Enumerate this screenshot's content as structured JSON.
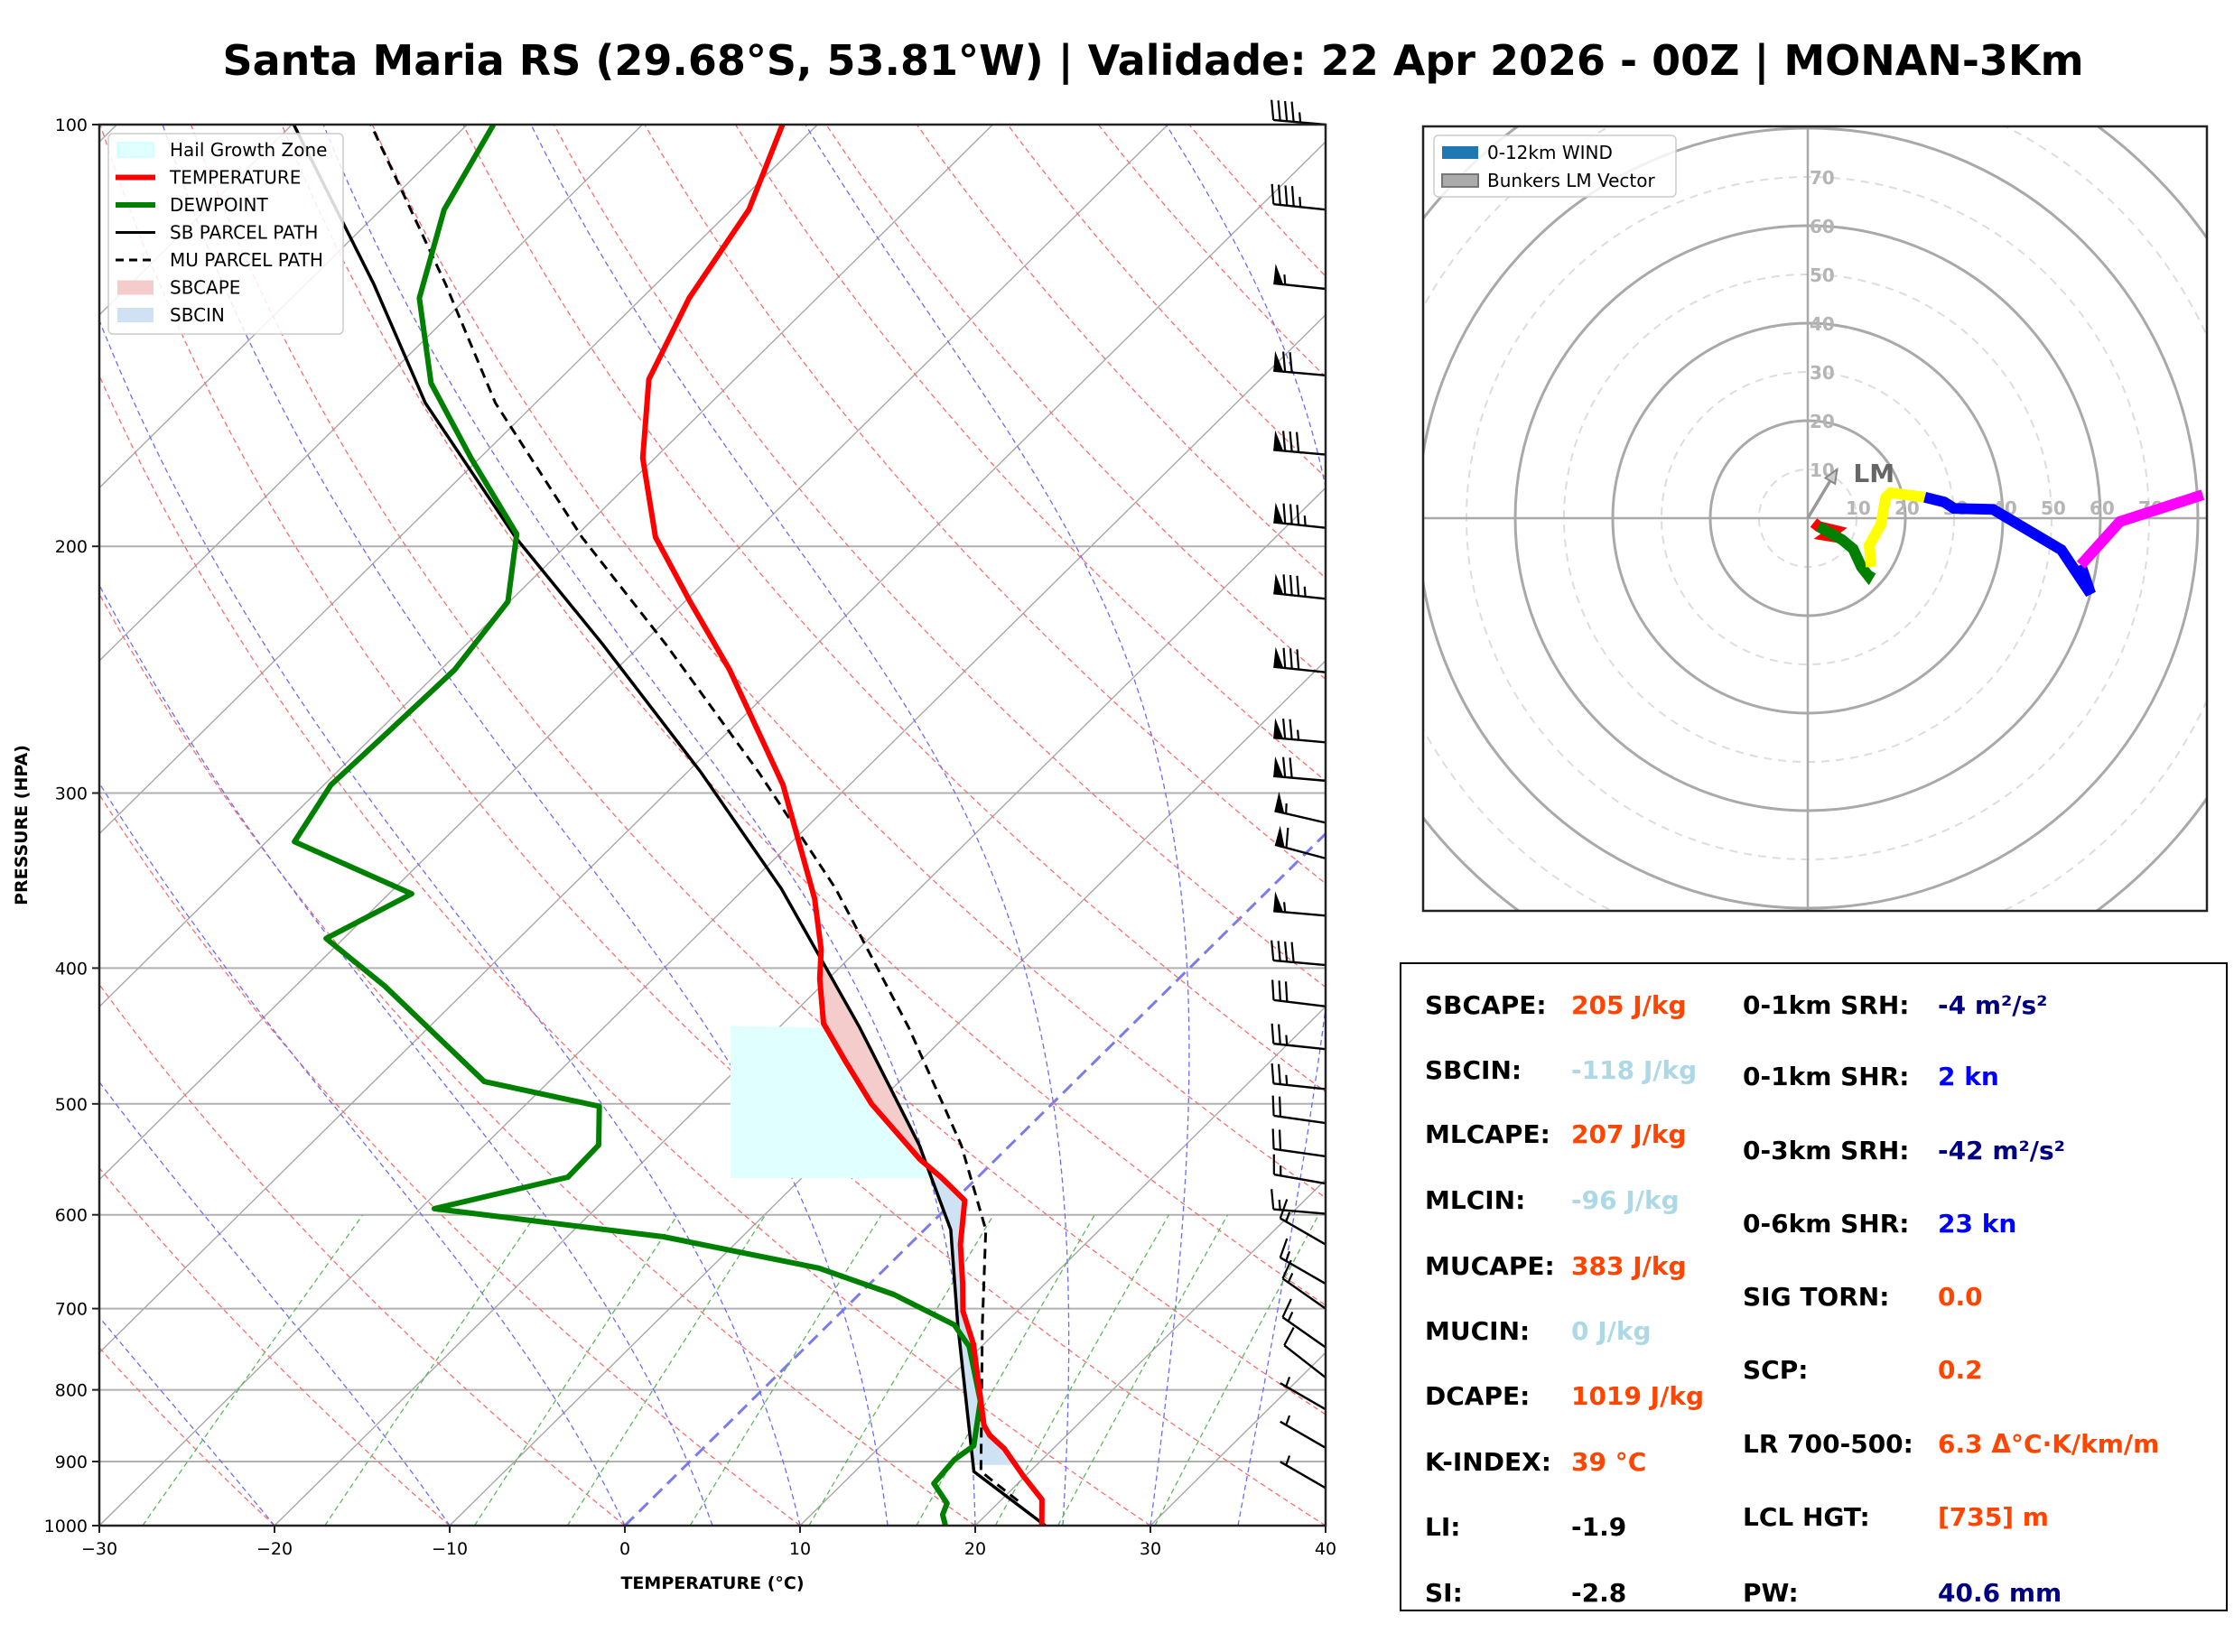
{
  "title": "Santa Maria RS (29.68°S, 53.81°W) | Validade: 22 Apr 2026 - 00Z | MONAN-3Km",
  "chart_data": [
    {
      "type": "line",
      "name": "skew-t",
      "xlabel": "TEMPERATURE (°C)",
      "ylabel": "PRESSURE (HPA)",
      "xlim": [
        -30,
        40
      ],
      "ylim": [
        1000,
        100
      ],
      "yscale": "log",
      "skew_degC_per_decade": 81,
      "xticks": [
        -30,
        -20,
        -10,
        0,
        10,
        20,
        30,
        40
      ],
      "xtick_labels": [
        "−30",
        "−20",
        "−10",
        "0",
        "10",
        "20",
        "30",
        "40"
      ],
      "yticks": [
        1000,
        900,
        800,
        700,
        600,
        500,
        400,
        300,
        200,
        100
      ],
      "ytick_labels": [
        "1000",
        "900",
        "800",
        "700",
        "600",
        "500",
        "400",
        "300",
        "200",
        "100"
      ],
      "legend": {
        "position": "top-left",
        "entries": [
          {
            "label": "Hail Growth Zone",
            "kind": "patch",
            "color": "#e0ffff"
          },
          {
            "label": "TEMPERATURE",
            "kind": "line",
            "color": "#ff0000"
          },
          {
            "label": "DEWPOINT",
            "kind": "line",
            "color": "#008000"
          },
          {
            "label": "SB PARCEL PATH",
            "kind": "line",
            "color": "#000000"
          },
          {
            "label": "MU PARCEL PATH",
            "kind": "dashed",
            "color": "#000000"
          },
          {
            "label": "SBCAPE",
            "kind": "patch",
            "color": "#f4cccc"
          },
          {
            "label": "SBCIN",
            "kind": "patch",
            "color": "#cfe2f3"
          }
        ]
      },
      "series": [
        {
          "name": "TEMPERATURE",
          "color": "#ff0000",
          "p": [
            1000,
            958,
            922,
            881,
            862,
            848,
            742,
            703,
            672,
            630,
            586,
            564,
            548,
            500,
            465,
            438,
            407,
            388,
            357,
            296,
            245,
            219,
            197,
            173,
            152,
            133,
            115,
            100
          ],
          "t": [
            23.8,
            22.3,
            19.9,
            17.2,
            15.6,
            14.7,
            9.4,
            6.9,
            5.3,
            2.9,
            0.6,
            -2.1,
            -4.3,
            -10.3,
            -14.4,
            -17.7,
            -20.5,
            -22.1,
            -25.4,
            -33.8,
            -43.5,
            -49.7,
            -55.4,
            -60.7,
            -64.9,
            -67.3,
            -69.0,
            -72.0
          ]
        },
        {
          "name": "DEWPOINT",
          "color": "#008000",
          "p": [
            1000,
            982,
            964,
            933,
            897,
            877,
            815,
            745,
            719,
            684,
            655,
            622,
            594,
            564,
            535,
            502,
            482,
            412,
            381,
            354,
            325,
            296,
            271,
            245,
            219,
            196,
            173,
            153,
            133,
            115,
            100
          ],
          "t": [
            18.3,
            17.5,
            17.1,
            15.2,
            15.0,
            15.3,
            13.1,
            9.3,
            7.2,
            2.0,
            -3.8,
            -14.5,
            -29.2,
            -23.4,
            -23.5,
            -25.7,
            -33.7,
            -44.9,
            -51.0,
            -48.7,
            -58.4,
            -59.6,
            -59.4,
            -59.2,
            -60.1,
            -63.5,
            -70.5,
            -77.1,
            -82.7,
            -86.4,
            -88.5
          ]
        },
        {
          "name": "SB PARCEL PATH",
          "color": "#000000",
          "p": [
            1000,
            915,
            719,
            615,
            535,
            441,
            351,
            290,
            235,
            197,
            158,
            130,
            100
          ],
          "t": [
            24.0,
            16.8,
            7.4,
            1.5,
            -5.2,
            -15.4,
            -27.9,
            -39.2,
            -52.2,
            -63.4,
            -76.3,
            -86.1,
            -99.9
          ]
        },
        {
          "name": "MU PARCEL PATH",
          "color": "#000000",
          "dashed": true,
          "p": [
            960,
            915,
            719,
            615,
            535,
            441,
            351,
            290,
            235,
            197,
            158,
            130,
            100
          ],
          "t": [
            21.0,
            17.2,
            8.8,
            3.5,
            -2.8,
            -12.6,
            -24.8,
            -35.9,
            -48.6,
            -59.6,
            -72.3,
            -82.0,
            -95.5
          ]
        }
      ],
      "shading": {
        "hail_growth_zone": {
          "p_bottom": 565,
          "p_top": 440,
          "t_left": -12,
          "color": "#e0ffff"
        },
        "sbcape": {
          "p_bottom": 562,
          "p_top": 392,
          "color": "#f4cccc"
        },
        "sbcin": {
          "p_bottom": 905,
          "p_top": 562,
          "color": "#cfe2f3"
        }
      },
      "reference_lines": {
        "dry_adiabats_theta_c": [
          -30,
          -20,
          -10,
          0,
          10,
          20,
          30,
          40,
          50,
          60,
          70,
          80,
          90,
          100,
          110,
          120,
          130,
          140,
          150,
          160
        ],
        "moist_adiabats_start_t_c": [
          -30,
          -20,
          -10,
          0,
          5,
          10,
          15,
          20,
          25,
          30,
          35
        ],
        "mixing_ratio_g_kg": [
          0.4,
          1,
          2,
          3,
          5,
          8,
          12,
          16,
          20,
          28
        ],
        "isotherms_c": [
          -120,
          -110,
          -100,
          -90,
          -80,
          -70,
          -60,
          -50,
          -40,
          -30,
          -20,
          -10,
          0,
          10,
          20,
          30,
          40
        ],
        "highlight_isotherm_c": 0
      },
      "wind_barbs": [
        {
          "p": 100,
          "speed_kn": 45,
          "dir_deg": 275
        },
        {
          "p": 115,
          "speed_kn": 45,
          "dir_deg": 276
        },
        {
          "p": 131,
          "speed_kn": 55,
          "dir_deg": 276
        },
        {
          "p": 151,
          "speed_kn": 70,
          "dir_deg": 275
        },
        {
          "p": 172,
          "speed_kn": 80,
          "dir_deg": 275
        },
        {
          "p": 194,
          "speed_kn": 85,
          "dir_deg": 276
        },
        {
          "p": 218,
          "speed_kn": 85,
          "dir_deg": 276
        },
        {
          "p": 246,
          "speed_kn": 80,
          "dir_deg": 276
        },
        {
          "p": 276,
          "speed_kn": 75,
          "dir_deg": 275
        },
        {
          "p": 294,
          "speed_kn": 70,
          "dir_deg": 275
        },
        {
          "p": 315,
          "speed_kn": 55,
          "dir_deg": 283
        },
        {
          "p": 334,
          "speed_kn": 60,
          "dir_deg": 285
        },
        {
          "p": 367,
          "speed_kn": 55,
          "dir_deg": 275
        },
        {
          "p": 398,
          "speed_kn": 40,
          "dir_deg": 275
        },
        {
          "p": 426,
          "speed_kn": 30,
          "dir_deg": 277
        },
        {
          "p": 457,
          "speed_kn": 25,
          "dir_deg": 276
        },
        {
          "p": 488,
          "speed_kn": 25,
          "dir_deg": 276
        },
        {
          "p": 516,
          "speed_kn": 20,
          "dir_deg": 278
        },
        {
          "p": 545,
          "speed_kn": 20,
          "dir_deg": 278
        },
        {
          "p": 570,
          "speed_kn": 15,
          "dir_deg": 280
        },
        {
          "p": 599,
          "speed_kn": 15,
          "dir_deg": 275
        },
        {
          "p": 630,
          "speed_kn": 15,
          "dir_deg": 300
        },
        {
          "p": 672,
          "speed_kn": 15,
          "dir_deg": 300
        },
        {
          "p": 700,
          "speed_kn": 15,
          "dir_deg": 305
        },
        {
          "p": 746,
          "speed_kn": 15,
          "dir_deg": 305
        },
        {
          "p": 784,
          "speed_kn": 10,
          "dir_deg": 308
        },
        {
          "p": 826,
          "speed_kn": 5,
          "dir_deg": 300
        },
        {
          "p": 880,
          "speed_kn": 5,
          "dir_deg": 300
        },
        {
          "p": 940,
          "speed_kn": 5,
          "dir_deg": 300
        }
      ]
    },
    {
      "type": "line",
      "name": "hodograph",
      "units": "kn",
      "rings_kn": [
        10,
        20,
        30,
        40,
        50,
        60,
        70,
        80,
        90,
        100
      ],
      "solid_rings_kn": [
        20,
        40,
        60,
        80,
        100
      ],
      "vertical_labels": [
        "10",
        "20",
        "30",
        "40",
        "50",
        "60",
        "70"
      ],
      "horizontal_labels": [
        "10",
        "20",
        "30",
        "40",
        "50",
        "60",
        "70"
      ],
      "legend": {
        "position": "top-left",
        "entries": [
          {
            "label": "0-12km WIND",
            "color": "#1f77b4"
          },
          {
            "label": "Bunkers LM Vector",
            "color": "#aaaaaa"
          }
        ]
      },
      "segments": [
        {
          "color": "#ff0000",
          "u": [
            1.2,
            2.2,
            5.5,
            4.0,
            6.5
          ],
          "v": [
            -0.9,
            -1.7,
            -2.5,
            -3.6,
            -4.0
          ]
        },
        {
          "color": "#008000",
          "u": [
            2.2,
            7.0,
            9.3,
            11.0,
            12.4,
            13.0
          ],
          "v": [
            -1.7,
            -4.4,
            -6.3,
            -10.0,
            -11.8,
            -10.8
          ]
        },
        {
          "color": "#ffff00",
          "u": [
            13.0,
            12.6,
            15.0,
            16.0,
            17.0,
            24.0
          ],
          "v": [
            -10.0,
            -5.6,
            -1.3,
            4.3,
            5.2,
            4.3
          ]
        },
        {
          "color": "#0000ff",
          "u": [
            24.0,
            28.0,
            30.0,
            38.0,
            52.0,
            58.0,
            56.0
          ],
          "v": [
            4.3,
            3.3,
            2.0,
            1.8,
            -6.5,
            -15.5,
            -9.6
          ]
        },
        {
          "color": "#ff00ff",
          "u": [
            56.0,
            64.0,
            81.0
          ],
          "v": [
            -9.6,
            -0.7,
            4.8
          ]
        }
      ],
      "bunkers_lm": {
        "label": "LM",
        "u": 6.0,
        "v": 10.0
      }
    }
  ],
  "stats": {
    "left": [
      {
        "label": "SBCAPE:",
        "value": "205 J/kg",
        "color": "#ff4500"
      },
      {
        "label": "SBCIN:",
        "value": "-118 J/kg",
        "color": "#add8e6"
      },
      {
        "label": "MLCAPE:",
        "value": "207 J/kg",
        "color": "#ff4500"
      },
      {
        "label": "MLCIN:",
        "value": "-96 J/kg",
        "color": "#add8e6"
      },
      {
        "label": "MUCAPE:",
        "value": "383 J/kg",
        "color": "#ff4500"
      },
      {
        "label": "MUCIN:",
        "value": "0 J/kg",
        "color": "#add8e6"
      },
      {
        "label": "DCAPE:",
        "value": "1019 J/kg",
        "color": "#ff4500"
      },
      {
        "label": "K-INDEX:",
        "value": "39 °C",
        "color": "#ff4500"
      },
      {
        "label": "LI:",
        "value": "-1.9",
        "color": "#000000"
      },
      {
        "label": "SI:",
        "value": "-2.8",
        "color": "#000000"
      }
    ],
    "right": [
      {
        "label": "0-1km SRH:",
        "value": "-4 m²/s²",
        "color": "#000080"
      },
      {
        "label": "0-1km SHR:",
        "value": "2 kn",
        "color": "#0000ff"
      },
      {
        "label": "0-3km SRH:",
        "value": "-42 m²/s²",
        "color": "#000080"
      },
      {
        "label": "0-6km SHR:",
        "value": "23 kn",
        "color": "#0000ff"
      },
      {
        "label": "SIG TORN:",
        "value": "0.0",
        "color": "#ff4500"
      },
      {
        "label": "SCP:",
        "value": "0.2",
        "color": "#ff4500"
      },
      {
        "label": "LR 700-500:",
        "value": "6.3 Δ°C·K/km/m",
        "color": "#ff4500"
      },
      {
        "label": "LCL HGT:",
        "value": "[735] m",
        "color": "#ff4500"
      },
      {
        "label": "PW:",
        "value": "40.6 mm",
        "color": "#000080"
      }
    ]
  }
}
